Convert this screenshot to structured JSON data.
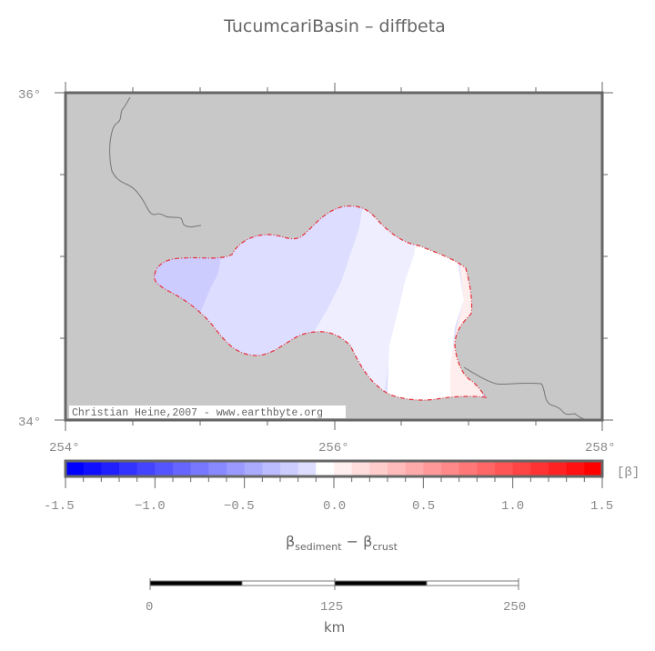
{
  "title": "TucumcariBasin – diffbeta",
  "map": {
    "background_color": "#c8c8c8",
    "frame_color": "#666666",
    "lon_range": [
      254,
      258
    ],
    "lat_range": [
      34,
      36
    ],
    "lat_labels": [
      "36°",
      "34°"
    ],
    "lon_labels": [
      "254°",
      "256°",
      "258°"
    ],
    "credit": "Christian Heine,2007 - www.earthbyte.org",
    "basin_outline_color": "#e8303a"
  },
  "colorbar": {
    "unit_label": "[β]",
    "tick_labels": [
      "-1.5",
      "−1.0",
      "−0.5",
      "0.0",
      "0.5",
      "1.0",
      "1.5"
    ],
    "range": [
      -1.5,
      1.5
    ],
    "axis_label_main": "β",
    "axis_label_sub1": "sediment",
    "axis_label_minus": " − ",
    "axis_label_sub2": "crust",
    "colors": [
      "#0000ff",
      "#1010ff",
      "#2020ff",
      "#3333ff",
      "#4444ff",
      "#5555ff",
      "#6666ff",
      "#7777ff",
      "#8888ff",
      "#9999ff",
      "#aaaaff",
      "#bbbbff",
      "#ccccff",
      "#ddddff",
      "#eeeeff",
      "#ffffff",
      "#ffeeee",
      "#ffdddd",
      "#ffcccc",
      "#ffbbbb",
      "#ffaaaa",
      "#ff9999",
      "#ff8888",
      "#ff7777",
      "#ff6666",
      "#ff5555",
      "#ff4444",
      "#ff3333",
      "#ff2222",
      "#ff1111",
      "#ff0000"
    ]
  },
  "scalebar": {
    "tick_labels": [
      "0",
      "125",
      "250"
    ],
    "unit": "km"
  }
}
